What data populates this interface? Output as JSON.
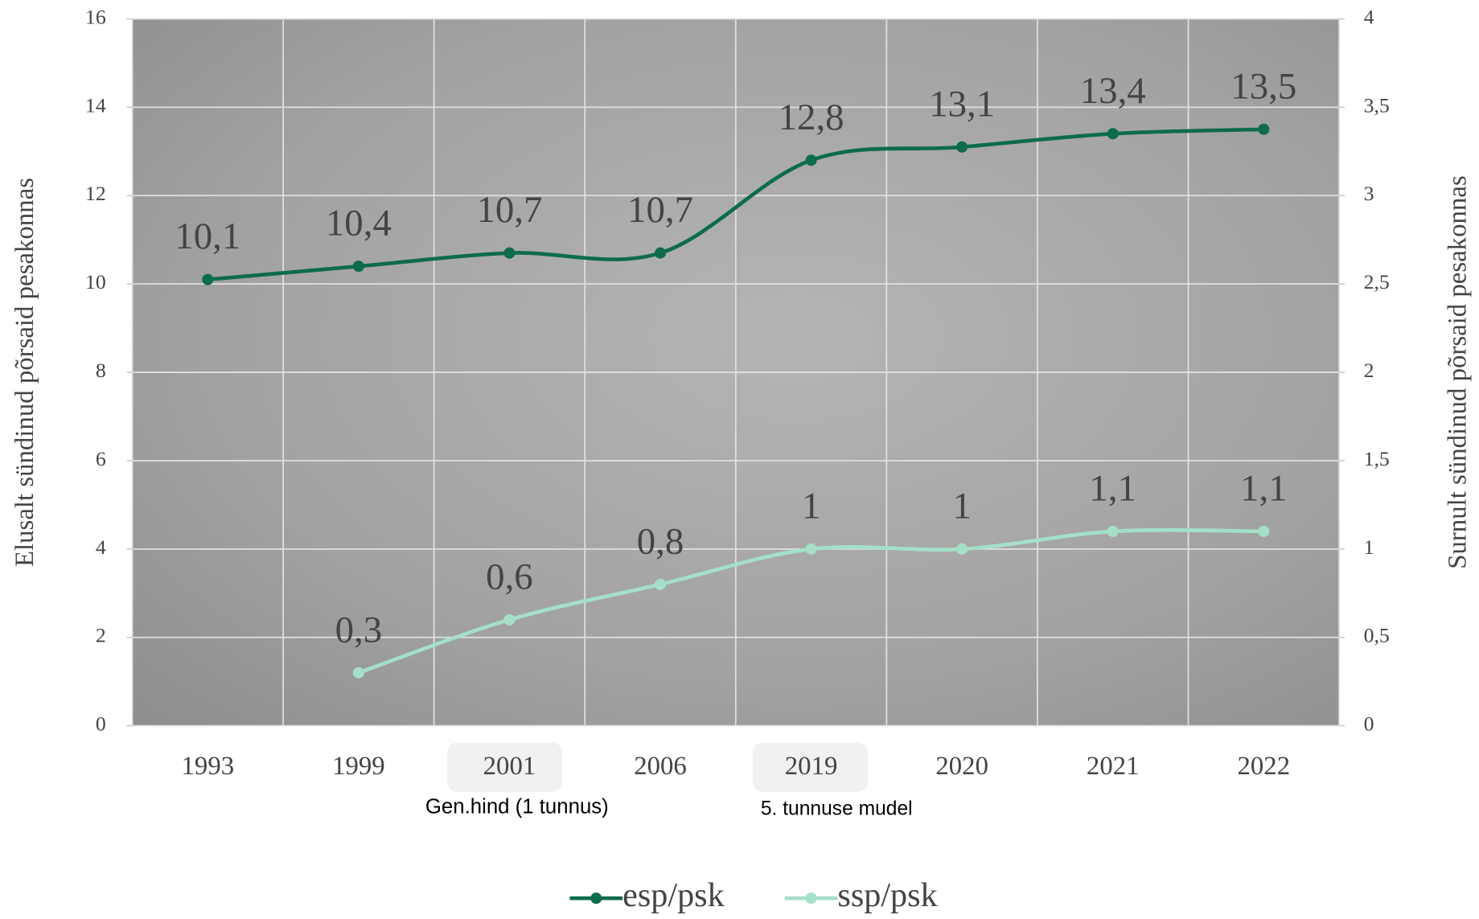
{
  "chart_data": {
    "type": "line",
    "categories": [
      "1993",
      "1999",
      "2001",
      "2006",
      "2019",
      "2020",
      "2021",
      "2022"
    ],
    "series": [
      {
        "name": "esp/psk",
        "color": "#0d6b4e",
        "values": [
          10.1,
          10.4,
          10.7,
          10.7,
          12.8,
          13.1,
          13.4,
          13.5
        ],
        "value_labels": [
          "10,1",
          "10,4",
          "10,7",
          "10,7",
          "12,8",
          "13,1",
          "13,4",
          "13,5"
        ]
      },
      {
        "name": "ssp/psk",
        "color": "#a5dfc8",
        "axis": "y2",
        "values": [
          null,
          0.3,
          0.6,
          0.8,
          1,
          1,
          1.1,
          1.1
        ],
        "value_labels": [
          null,
          "0,3",
          "0,6",
          "0,8",
          "1",
          "1",
          "1,1",
          "1,1"
        ]
      }
    ],
    "ylabel": "Elusalt sündinud põrsaid pesakonnas",
    "y2label": "Surnult sündinud põrsaid pesakonnas",
    "ylim": [
      0,
      16
    ],
    "yticks": [
      0,
      2,
      4,
      6,
      8,
      10,
      12,
      14,
      16
    ],
    "y2lim": [
      0,
      4
    ],
    "y2ticks": [
      0,
      {
        "value": 0.5,
        "label": "0,5"
      },
      1,
      {
        "value": 1.5,
        "label": "1,5"
      },
      2,
      {
        "value": 2.5,
        "label": "2,5"
      },
      3,
      {
        "value": 3.5,
        "label": "3,5"
      },
      4
    ],
    "annotations": [
      "Gen.hind (1 tunnus)",
      "5. tunnuse mudel"
    ],
    "grid": true,
    "legend": "bottom"
  }
}
